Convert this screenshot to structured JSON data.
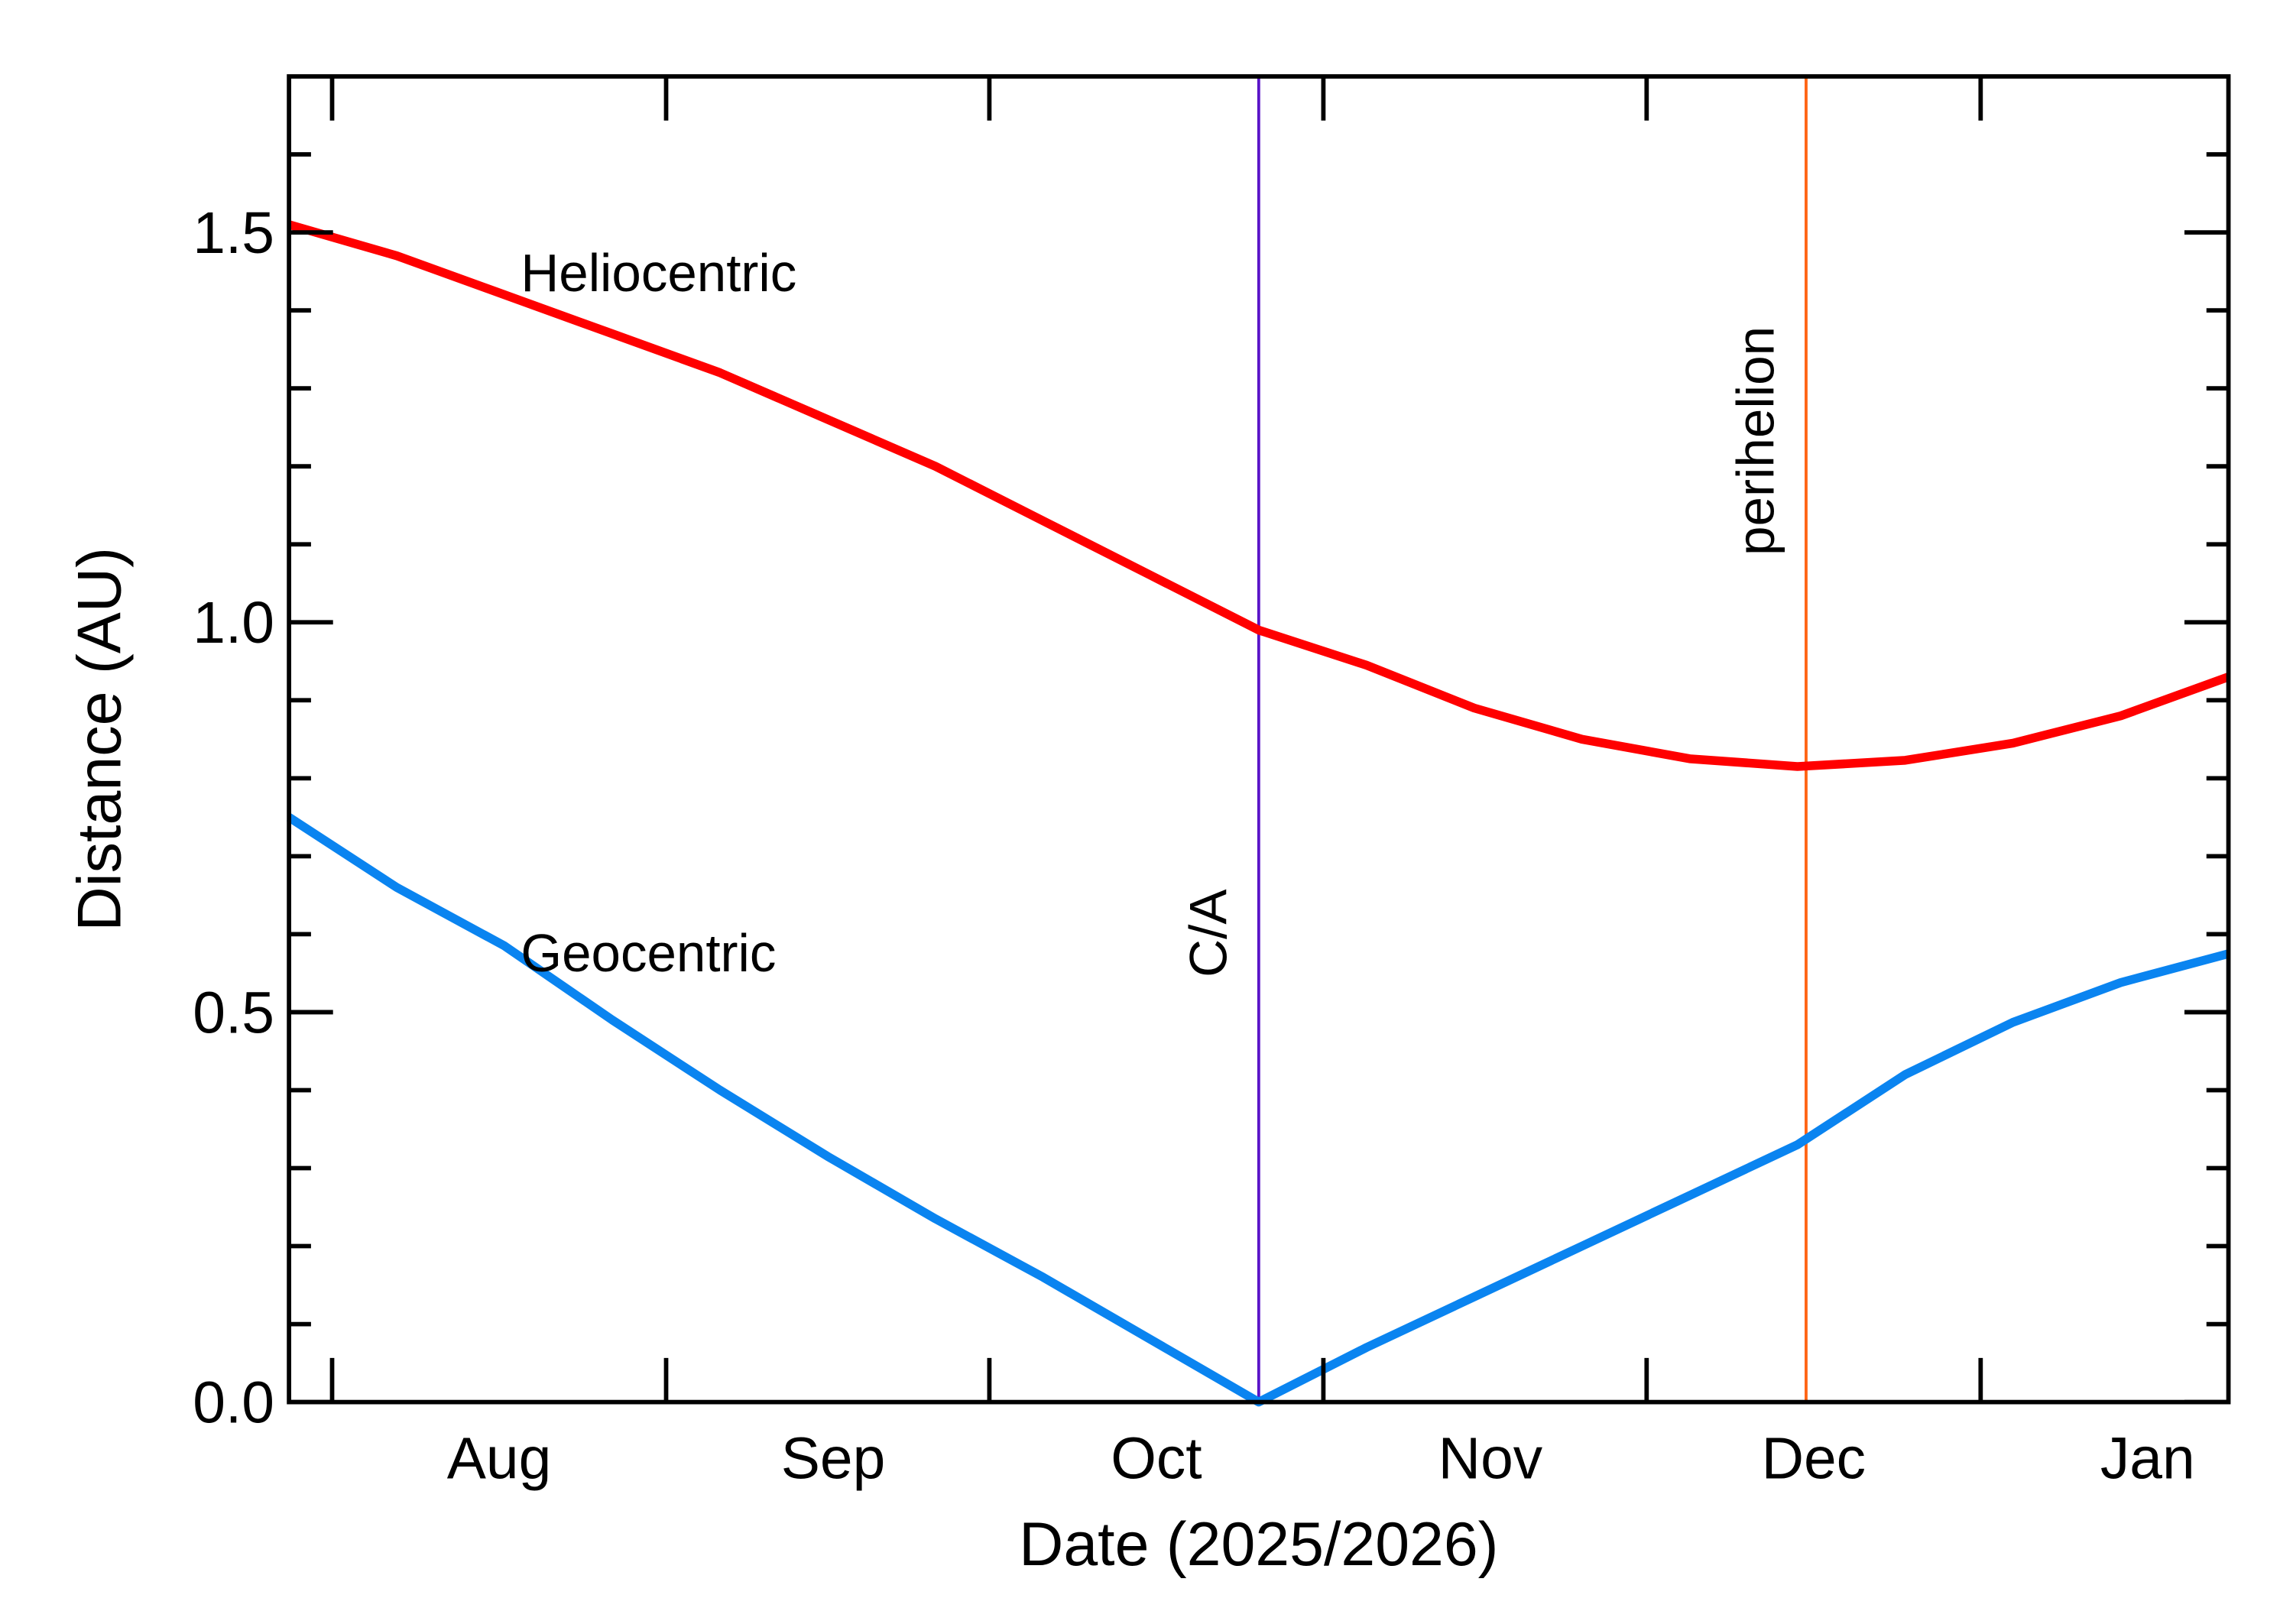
{
  "chart_data": {
    "type": "line",
    "x_label": "Date (2025/2026)",
    "y_label": "Distance (AU)",
    "x": [
      0,
      10,
      20,
      30,
      40,
      50,
      60,
      70,
      80,
      90,
      100,
      110,
      120,
      130,
      140,
      150,
      160,
      170,
      180
    ],
    "series": [
      {
        "name": "Heliocentric",
        "color": "#ff0000",
        "values": [
          1.51,
          1.47,
          1.42,
          1.37,
          1.32,
          1.26,
          1.2,
          1.13,
          1.06,
          0.99,
          0.945,
          0.89,
          0.85,
          0.825,
          0.815,
          0.823,
          0.845,
          0.88,
          0.93
        ]
      },
      {
        "name": "Geocentric",
        "color": "#0a84f0",
        "values": [
          0.75,
          0.66,
          0.585,
          0.49,
          0.4,
          0.315,
          0.235,
          0.16,
          0.08,
          0.0,
          0.07,
          0.135,
          0.2,
          0.265,
          0.33,
          0.42,
          0.487,
          0.538,
          0.575
        ]
      }
    ],
    "xlim": [
      0,
      180
    ],
    "xticks": [
      {
        "value": 4,
        "label": "Aug"
      },
      {
        "value": 35,
        "label": "Sep"
      },
      {
        "value": 65,
        "label": "Oct"
      },
      {
        "value": 96,
        "label": "Nov"
      },
      {
        "value": 126,
        "label": "Dec"
      },
      {
        "value": 157,
        "label": "Jan"
      }
    ],
    "ylim": [
      0,
      1.7
    ],
    "yticks": [
      {
        "value": 0,
        "label": "0.0"
      },
      {
        "value": 0.5,
        "label": "0.5"
      },
      {
        "value": 1,
        "label": "1.0"
      },
      {
        "value": 1.5,
        "label": "1.5"
      }
    ],
    "yminorticks": [
      0.1,
      0.2,
      0.3,
      0.4,
      0.6,
      0.7,
      0.8,
      0.9,
      1.1,
      1.2,
      1.3,
      1.4,
      1.6
    ],
    "vlines": [
      {
        "x": 90,
        "label": "C/A",
        "color": "#5a14c8"
      },
      {
        "x": 140.8,
        "label": "perihelion",
        "color": "#ff6414"
      }
    ]
  }
}
